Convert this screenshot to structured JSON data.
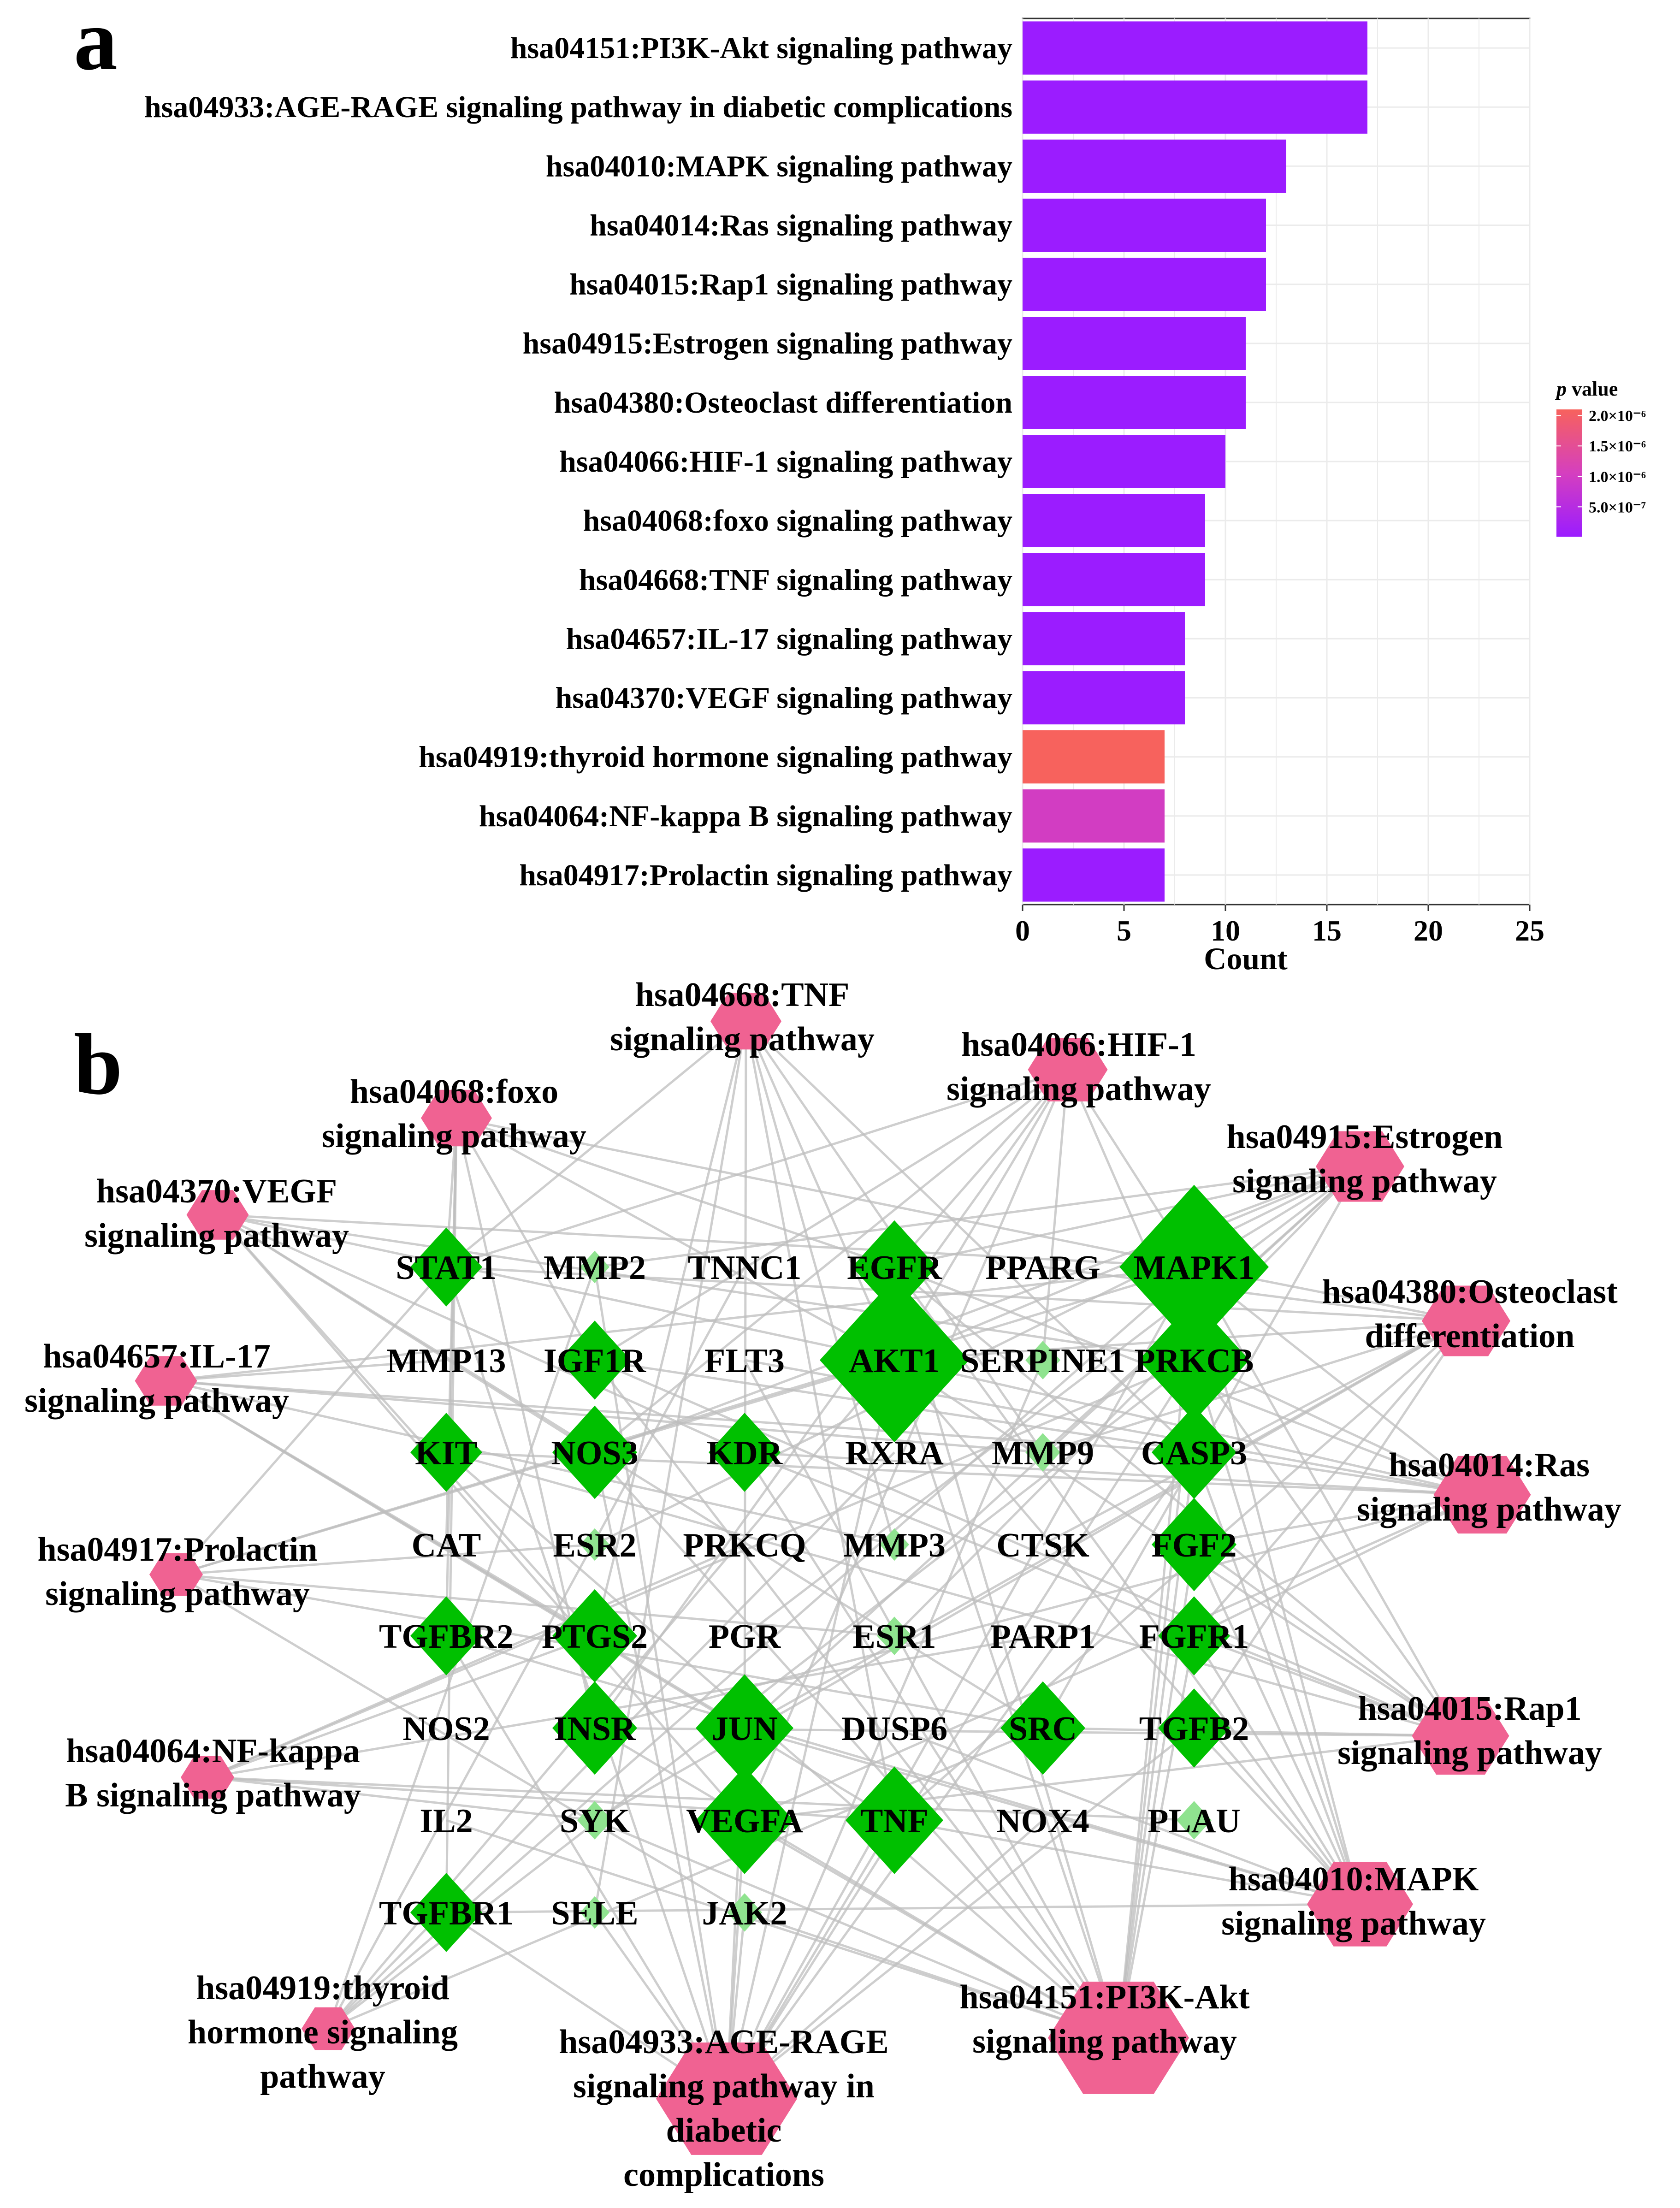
{
  "panel_a_letter": "a",
  "panel_b_letter": "b",
  "chart_data": [
    {
      "type": "bar",
      "orientation": "horizontal",
      "categories": [
        "hsa04151:PI3K-Akt signaling pathway",
        "hsa04933:AGE-RAGE signaling pathway in diabetic complications",
        "hsa04010:MAPK signaling pathway",
        "hsa04014:Ras signaling pathway",
        "hsa04015:Rap1 signaling pathway",
        "hsa04915:Estrogen signaling pathway",
        "hsa04380:Osteoclast differentiation",
        "hsa04066:HIF-1 signaling pathway",
        "hsa04068:foxo signaling pathway",
        "hsa04668:TNF signaling pathway",
        "hsa04657:IL-17 signaling pathway",
        "hsa04370:VEGF signaling pathway",
        "hsa04919:thyroid hormone signaling pathway",
        "hsa04064:NF-kappa B signaling pathway",
        "hsa04917:Prolactin signaling pathway"
      ],
      "values": [
        17,
        17,
        13,
        12,
        12,
        11,
        11,
        10,
        9,
        9,
        8,
        8,
        7,
        7,
        7
      ],
      "p_values": [
        1e-08,
        1e-08,
        1e-08,
        1e-08,
        1e-08,
        1e-08,
        1e-08,
        1e-08,
        1e-08,
        1e-08,
        1e-08,
        1e-08,
        2.1e-06,
        1e-06,
        1e-08
      ],
      "xlabel": "Count",
      "xlim": [
        0,
        25
      ],
      "xticks": [
        "0",
        "5",
        "10",
        "15",
        "20",
        "25"
      ],
      "grid": true,
      "legend": {
        "title_italic": "p",
        "title_rest": " value",
        "placement": "right",
        "ticks": [
          "2.0×10⁻⁶",
          "1.5×10⁻⁶",
          "1.0×10⁻⁶",
          "5.0×10⁻⁷"
        ],
        "range": [
          1e-08,
          2.1e-06
        ],
        "color_low": "#9b1cff",
        "color_mid": "#d53fbf",
        "color_high": "#f7625d"
      }
    },
    {
      "type": "network",
      "gene_nodes": [
        {
          "id": "STAT1",
          "size": 3
        },
        {
          "id": "MMP2",
          "size": 1
        },
        {
          "id": "TNNC1",
          "size": 0
        },
        {
          "id": "EGFR",
          "size": 4
        },
        {
          "id": "PPARG",
          "size": 0
        },
        {
          "id": "MAPK1",
          "size": 9
        },
        {
          "id": "MMP13",
          "size": 0
        },
        {
          "id": "IGF1R",
          "size": 3
        },
        {
          "id": "FLT3",
          "size": 0
        },
        {
          "id": "AKT1",
          "size": 9
        },
        {
          "id": "SERPINE1",
          "size": 2
        },
        {
          "id": "PRKCB",
          "size": 6
        },
        {
          "id": "KIT",
          "size": 3
        },
        {
          "id": "NOS3",
          "size": 4
        },
        {
          "id": "KDR",
          "size": 3
        },
        {
          "id": "RXRA",
          "size": 0
        },
        {
          "id": "MMP9",
          "size": 2
        },
        {
          "id": "CASP3",
          "size": 4
        },
        {
          "id": "CAT",
          "size": 0
        },
        {
          "id": "ESR2",
          "size": 1
        },
        {
          "id": "PRKCQ",
          "size": 0
        },
        {
          "id": "MMP3",
          "size": 1
        },
        {
          "id": "CTSK",
          "size": 0
        },
        {
          "id": "FGF2",
          "size": 4
        },
        {
          "id": "TGFBR2",
          "size": 3
        },
        {
          "id": "PTGS2",
          "size": 4
        },
        {
          "id": "PGR",
          "size": 0
        },
        {
          "id": "ESR1",
          "size": 2
        },
        {
          "id": "PARP1",
          "size": 0
        },
        {
          "id": "FGFR1",
          "size": 3
        },
        {
          "id": "NOS2",
          "size": 0
        },
        {
          "id": "INSR",
          "size": 4
        },
        {
          "id": "JUN",
          "size": 5
        },
        {
          "id": "DUSP6",
          "size": 0
        },
        {
          "id": "SRC",
          "size": 4
        },
        {
          "id": "TGFB2",
          "size": 3
        },
        {
          "id": "IL2",
          "size": 0
        },
        {
          "id": "SYK",
          "size": 2
        },
        {
          "id": "VEGFA",
          "size": 5
        },
        {
          "id": "TNF",
          "size": 5
        },
        {
          "id": "NOX4",
          "size": 0
        },
        {
          "id": "PLAU",
          "size": 2
        },
        {
          "id": "TGFBR1",
          "size": 3
        },
        {
          "id": "SELE",
          "size": 1
        },
        {
          "id": "JAK2",
          "size": 2
        }
      ],
      "pathway_nodes": [
        {
          "id": "hsa04668",
          "lines": [
            "hsa04668:TNF",
            "signaling pathway"
          ],
          "size": 9
        },
        {
          "id": "hsa04066",
          "lines": [
            "hsa04066:HIF-1",
            "signaling pathway"
          ],
          "size": 10
        },
        {
          "id": "hsa04068",
          "lines": [
            "hsa04068:foxo",
            "signaling pathway"
          ],
          "size": 9
        },
        {
          "id": "hsa04915",
          "lines": [
            "hsa04915:Estrogen",
            "signaling pathway"
          ],
          "size": 11
        },
        {
          "id": "hsa04370",
          "lines": [
            "hsa04370:VEGF",
            "signaling pathway"
          ],
          "size": 8
        },
        {
          "id": "hsa04380",
          "lines": [
            "hsa04380:Osteoclast",
            "differentiation"
          ],
          "size": 11
        },
        {
          "id": "hsa04657",
          "lines": [
            "hsa04657:IL-17",
            "signaling pathway"
          ],
          "size": 8
        },
        {
          "id": "hsa04014",
          "lines": [
            "hsa04014:Ras",
            "signaling pathway"
          ],
          "size": 12
        },
        {
          "id": "hsa04917",
          "lines": [
            "hsa04917:Prolactin",
            "signaling pathway"
          ],
          "size": 7
        },
        {
          "id": "hsa04015",
          "lines": [
            "hsa04015:Rap1",
            "signaling pathway"
          ],
          "size": 12
        },
        {
          "id": "hsa04064",
          "lines": [
            "hsa04064:NF-kappa",
            "B signaling pathway"
          ],
          "size": 7
        },
        {
          "id": "hsa04010",
          "lines": [
            "hsa04010:MAPK",
            "signaling pathway"
          ],
          "size": 13
        },
        {
          "id": "hsa04919",
          "lines": [
            "hsa04919:thyroid",
            "hormone signaling",
            "pathway"
          ],
          "size": 7
        },
        {
          "id": "hsa04151",
          "lines": [
            "hsa04151:PI3K-Akt",
            "signaling pathway"
          ],
          "size": 17
        },
        {
          "id": "hsa04933",
          "lines": [
            "hsa04933:AGE-RAGE",
            "signaling pathway in",
            "diabetic",
            "complications"
          ],
          "size": 17
        }
      ],
      "edges": [
        [
          "hsa04668",
          "STAT1"
        ],
        [
          "hsa04668",
          "MMP9"
        ],
        [
          "hsa04668",
          "CASP3"
        ],
        [
          "hsa04668",
          "PTGS2"
        ],
        [
          "hsa04668",
          "JUN"
        ],
        [
          "hsa04668",
          "TNF"
        ],
        [
          "hsa04668",
          "MMP3"
        ],
        [
          "hsa04668",
          "SELE"
        ],
        [
          "hsa04668",
          "AKT1"
        ],
        [
          "hsa04066",
          "STAT1"
        ],
        [
          "hsa04066",
          "EGFR"
        ],
        [
          "hsa04066",
          "MAPK1"
        ],
        [
          "hsa04066",
          "AKT1"
        ],
        [
          "hsa04066",
          "SERPINE1"
        ],
        [
          "hsa04066",
          "PRKCB"
        ],
        [
          "hsa04066",
          "NOS3"
        ],
        [
          "hsa04066",
          "INSR"
        ],
        [
          "hsa04066",
          "VEGFA"
        ],
        [
          "hsa04066",
          "IGF1R"
        ],
        [
          "hsa04068",
          "STAT1"
        ],
        [
          "hsa04068",
          "EGFR"
        ],
        [
          "hsa04068",
          "MAPK1"
        ],
        [
          "hsa04068",
          "AKT1"
        ],
        [
          "hsa04068",
          "IGF1R"
        ],
        [
          "hsa04068",
          "INSR"
        ],
        [
          "hsa04068",
          "CAT"
        ],
        [
          "hsa04068",
          "TGFBR1"
        ],
        [
          "hsa04068",
          "TGFBR2"
        ],
        [
          "hsa04915",
          "EGFR"
        ],
        [
          "hsa04915",
          "MAPK1"
        ],
        [
          "hsa04915",
          "AKT1"
        ],
        [
          "hsa04915",
          "NOS3"
        ],
        [
          "hsa04915",
          "MMP2"
        ],
        [
          "hsa04915",
          "MMP9"
        ],
        [
          "hsa04915",
          "ESR1"
        ],
        [
          "hsa04915",
          "ESR2"
        ],
        [
          "hsa04915",
          "PGR"
        ],
        [
          "hsa04915",
          "JUN"
        ],
        [
          "hsa04915",
          "SRC"
        ],
        [
          "hsa04370",
          "MAPK1"
        ],
        [
          "hsa04370",
          "AKT1"
        ],
        [
          "hsa04370",
          "PRKCB"
        ],
        [
          "hsa04370",
          "NOS3"
        ],
        [
          "hsa04370",
          "KDR"
        ],
        [
          "hsa04370",
          "PTGS2"
        ],
        [
          "hsa04370",
          "SRC"
        ],
        [
          "hsa04370",
          "VEGFA"
        ],
        [
          "hsa04380",
          "MAPK1"
        ],
        [
          "hsa04380",
          "AKT1"
        ],
        [
          "hsa04380",
          "CTSK"
        ],
        [
          "hsa04380",
          "JUN"
        ],
        [
          "hsa04380",
          "TNF"
        ],
        [
          "hsa04380",
          "SYK"
        ],
        [
          "hsa04380",
          "PPARG"
        ],
        [
          "hsa04380",
          "TGFB2"
        ],
        [
          "hsa04380",
          "STAT1"
        ],
        [
          "hsa04380",
          "MMP9"
        ],
        [
          "hsa04380",
          "FGFR1"
        ],
        [
          "hsa04657",
          "MAPK1"
        ],
        [
          "hsa04657",
          "CASP3"
        ],
        [
          "hsa04657",
          "MMP9"
        ],
        [
          "hsa04657",
          "MMP3"
        ],
        [
          "hsa04657",
          "MMP13"
        ],
        [
          "hsa04657",
          "PTGS2"
        ],
        [
          "hsa04657",
          "JUN"
        ],
        [
          "hsa04657",
          "TNF"
        ],
        [
          "hsa04014",
          "MAPK1"
        ],
        [
          "hsa04014",
          "AKT1"
        ],
        [
          "hsa04014",
          "EGFR"
        ],
        [
          "hsa04014",
          "PRKCB"
        ],
        [
          "hsa04014",
          "IGF1R"
        ],
        [
          "hsa04014",
          "INSR"
        ],
        [
          "hsa04014",
          "KDR"
        ],
        [
          "hsa04014",
          "KIT"
        ],
        [
          "hsa04014",
          "FGF2"
        ],
        [
          "hsa04014",
          "FGFR1"
        ],
        [
          "hsa04014",
          "FLT3"
        ],
        [
          "hsa04014",
          "VEGFA"
        ],
        [
          "hsa04917",
          "MAPK1"
        ],
        [
          "hsa04917",
          "AKT1"
        ],
        [
          "hsa04917",
          "STAT1"
        ],
        [
          "hsa04917",
          "ESR1"
        ],
        [
          "hsa04917",
          "ESR2"
        ],
        [
          "hsa04917",
          "SRC"
        ],
        [
          "hsa04917",
          "JAK2"
        ],
        [
          "hsa04015",
          "MAPK1"
        ],
        [
          "hsa04015",
          "AKT1"
        ],
        [
          "hsa04015",
          "EGFR"
        ],
        [
          "hsa04015",
          "PRKCB"
        ],
        [
          "hsa04015",
          "IGF1R"
        ],
        [
          "hsa04015",
          "INSR"
        ],
        [
          "hsa04015",
          "KDR"
        ],
        [
          "hsa04015",
          "KIT"
        ],
        [
          "hsa04015",
          "FGF2"
        ],
        [
          "hsa04015",
          "FGFR1"
        ],
        [
          "hsa04015",
          "SRC"
        ],
        [
          "hsa04015",
          "VEGFA"
        ],
        [
          "hsa04064",
          "PRKCB"
        ],
        [
          "hsa04064",
          "PRKCQ"
        ],
        [
          "hsa04064",
          "PTGS2"
        ],
        [
          "hsa04064",
          "TNF"
        ],
        [
          "hsa04064",
          "SYK"
        ],
        [
          "hsa04064",
          "PARP1"
        ],
        [
          "hsa04064",
          "PLAU"
        ],
        [
          "hsa04010",
          "MAPK1"
        ],
        [
          "hsa04010",
          "AKT1"
        ],
        [
          "hsa04010",
          "EGFR"
        ],
        [
          "hsa04010",
          "PRKCB"
        ],
        [
          "hsa04010",
          "CASP3"
        ],
        [
          "hsa04010",
          "FGF2"
        ],
        [
          "hsa04010",
          "FGFR1"
        ],
        [
          "hsa04010",
          "JUN"
        ],
        [
          "hsa04010",
          "TNF"
        ],
        [
          "hsa04010",
          "TGFB2"
        ],
        [
          "hsa04010",
          "TGFBR1"
        ],
        [
          "hsa04010",
          "TGFBR2"
        ],
        [
          "hsa04010",
          "DUSP6"
        ],
        [
          "hsa04919",
          "MAPK1"
        ],
        [
          "hsa04919",
          "AKT1"
        ],
        [
          "hsa04919",
          "PRKCB"
        ],
        [
          "hsa04919",
          "RXRA"
        ],
        [
          "hsa04919",
          "SRC"
        ],
        [
          "hsa04919",
          "MMP2"
        ],
        [
          "hsa04919",
          "TNNC1"
        ],
        [
          "hsa04151",
          "MAPK1"
        ],
        [
          "hsa04151",
          "AKT1"
        ],
        [
          "hsa04151",
          "EGFR"
        ],
        [
          "hsa04151",
          "IGF1R"
        ],
        [
          "hsa04151",
          "INSR"
        ],
        [
          "hsa04151",
          "KDR"
        ],
        [
          "hsa04151",
          "KIT"
        ],
        [
          "hsa04151",
          "FGF2"
        ],
        [
          "hsa04151",
          "FGFR1"
        ],
        [
          "hsa04151",
          "FLT3"
        ],
        [
          "hsa04151",
          "VEGFA"
        ],
        [
          "hsa04151",
          "NOS3"
        ],
        [
          "hsa04151",
          "CASP3"
        ],
        [
          "hsa04151",
          "JAK2"
        ],
        [
          "hsa04151",
          "SYK"
        ],
        [
          "hsa04151",
          "IL2"
        ],
        [
          "hsa04151",
          "PRKCB"
        ],
        [
          "hsa04933",
          "MAPK1"
        ],
        [
          "hsa04933",
          "AKT1"
        ],
        [
          "hsa04933",
          "PRKCB"
        ],
        [
          "hsa04933",
          "STAT1"
        ],
        [
          "hsa04933",
          "CASP3"
        ],
        [
          "hsa04933",
          "JUN"
        ],
        [
          "hsa04933",
          "TNF"
        ],
        [
          "hsa04933",
          "VEGFA"
        ],
        [
          "hsa04933",
          "NOS3"
        ],
        [
          "hsa04933",
          "SERPINE1"
        ],
        [
          "hsa04933",
          "TGFB2"
        ],
        [
          "hsa04933",
          "TGFBR1"
        ],
        [
          "hsa04933",
          "TGFBR2"
        ],
        [
          "hsa04933",
          "SELE"
        ],
        [
          "hsa04933",
          "JAK2"
        ],
        [
          "hsa04933",
          "NOX4"
        ],
        [
          "hsa04933",
          "MMP2"
        ]
      ],
      "gene_color": "#00c000",
      "pathway_color": "#f06292",
      "edge_color": "#bdbdbd"
    }
  ]
}
